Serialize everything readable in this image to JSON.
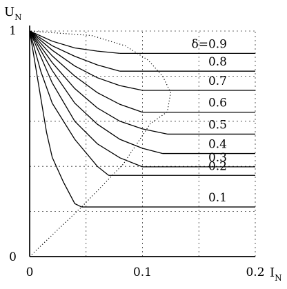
{
  "chart_data": {
    "type": "line",
    "title": "",
    "xlabel": "I",
    "xlabel_subscript": "N",
    "ylabel": "U",
    "ylabel_subscript": "N",
    "xlim": [
      0,
      0.2
    ],
    "ylim": [
      0,
      1
    ],
    "x_ticks": [
      {
        "value": 0,
        "label": "0"
      },
      {
        "value": 0.1,
        "label": "0.1"
      },
      {
        "value": 0.2,
        "label": "0.2"
      }
    ],
    "y_ticks": [
      {
        "value": 0,
        "label": "0"
      },
      {
        "value": 1,
        "label": "1"
      }
    ],
    "grid": true,
    "series": [
      {
        "name": "δ=0.9",
        "points": [
          [
            0,
            1
          ],
          [
            0.02,
            0.955
          ],
          [
            0.04,
            0.925
          ],
          [
            0.06,
            0.911
          ],
          [
            0.08,
            0.901
          ],
          [
            0.2,
            0.901
          ]
        ]
      },
      {
        "name": "0.8",
        "points": [
          [
            0,
            1
          ],
          [
            0.02,
            0.935
          ],
          [
            0.04,
            0.888
          ],
          [
            0.06,
            0.85
          ],
          [
            0.08,
            0.822
          ],
          [
            0.2,
            0.822
          ]
        ]
      },
      {
        "name": "0.7",
        "points": [
          [
            0,
            1
          ],
          [
            0.02,
            0.915
          ],
          [
            0.04,
            0.845
          ],
          [
            0.06,
            0.793
          ],
          [
            0.08,
            0.758
          ],
          [
            0.1,
            0.737
          ],
          [
            0.2,
            0.737
          ]
        ]
      },
      {
        "name": "0.6",
        "points": [
          [
            0,
            1
          ],
          [
            0.02,
            0.89
          ],
          [
            0.04,
            0.8
          ],
          [
            0.06,
            0.727
          ],
          [
            0.08,
            0.675
          ],
          [
            0.1,
            0.64
          ],
          [
            0.2,
            0.64
          ]
        ]
      },
      {
        "name": "0.5",
        "points": [
          [
            0,
            1
          ],
          [
            0.02,
            0.86
          ],
          [
            0.04,
            0.745
          ],
          [
            0.06,
            0.659
          ],
          [
            0.08,
            0.6
          ],
          [
            0.1,
            0.566
          ],
          [
            0.122,
            0.543
          ],
          [
            0.2,
            0.543
          ]
        ]
      },
      {
        "name": "0.4",
        "points": [
          [
            0,
            1
          ],
          [
            0.02,
            0.825
          ],
          [
            0.04,
            0.68
          ],
          [
            0.06,
            0.587
          ],
          [
            0.08,
            0.52
          ],
          [
            0.1,
            0.48
          ],
          [
            0.118,
            0.457
          ],
          [
            0.2,
            0.457
          ]
        ]
      },
      {
        "name": "0.3",
        "points": [
          [
            0,
            1
          ],
          [
            0.02,
            0.77
          ],
          [
            0.04,
            0.6
          ],
          [
            0.06,
            0.5
          ],
          [
            0.08,
            0.438
          ],
          [
            0.1,
            0.398
          ],
          [
            0.2,
            0.398
          ]
        ]
      },
      {
        "name": "0.2",
        "points": [
          [
            0,
            1
          ],
          [
            0.01,
            0.82
          ],
          [
            0.02,
            0.68
          ],
          [
            0.04,
            0.52
          ],
          [
            0.06,
            0.4
          ],
          [
            0.07,
            0.36
          ],
          [
            0.2,
            0.36
          ]
        ]
      },
      {
        "name": "0.1",
        "points": [
          [
            0,
            1
          ],
          [
            0.005,
            0.85
          ],
          [
            0.01,
            0.7
          ],
          [
            0.015,
            0.55
          ],
          [
            0.02,
            0.44
          ],
          [
            0.03,
            0.33
          ],
          [
            0.04,
            0.235
          ],
          [
            0.046,
            0.22
          ],
          [
            0.2,
            0.22
          ]
        ]
      }
    ],
    "envelope": [
      [
        0,
        0
      ],
      [
        0.046,
        0.22
      ],
      [
        0.083,
        0.41
      ],
      [
        0.107,
        0.589
      ],
      [
        0.122,
        0.642
      ],
      [
        0.125,
        0.727
      ],
      [
        0.118,
        0.799
      ],
      [
        0.105,
        0.871
      ],
      [
        0.085,
        0.934
      ],
      [
        0.055,
        0.98
      ],
      [
        0,
        1
      ]
    ]
  }
}
